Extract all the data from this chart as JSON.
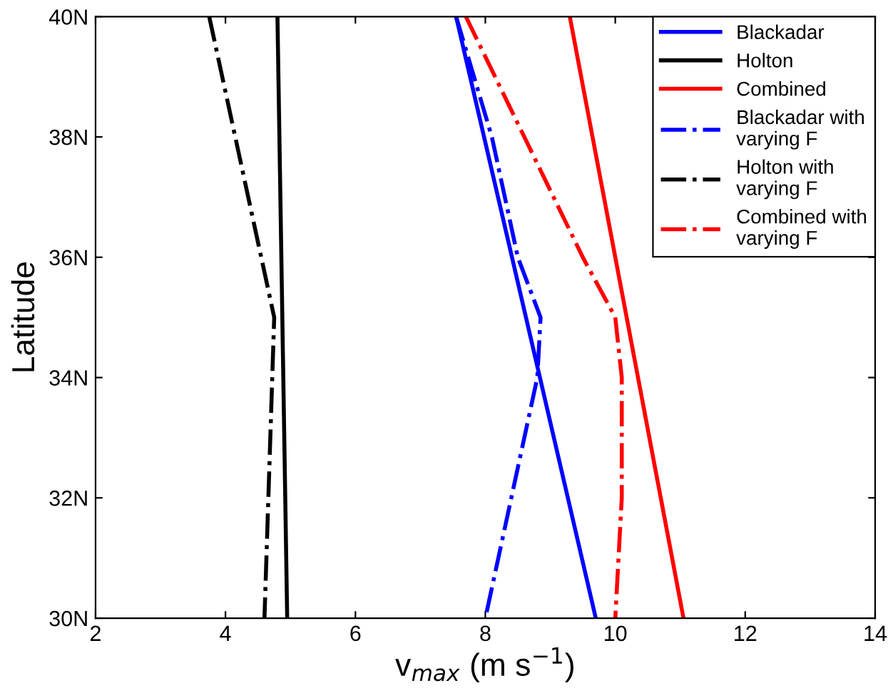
{
  "chart_data": {
    "type": "line",
    "xlabel": "v$_{max}$ (m s$^{−1}$)",
    "ylabel": "Latitude",
    "x": [
      40,
      30
    ],
    "xlim": [
      2,
      14
    ],
    "xticks": [
      2,
      4,
      6,
      8,
      10,
      12,
      14
    ],
    "ylim": [
      30,
      40
    ],
    "yticks": [
      {
        "value": 30,
        "label": "30N"
      },
      {
        "value": 32,
        "label": "32N"
      },
      {
        "value": 34,
        "label": "34N"
      },
      {
        "value": 36,
        "label": "36N"
      },
      {
        "value": 38,
        "label": "38N"
      },
      {
        "value": 40,
        "label": "40N"
      }
    ],
    "grid": false,
    "legend": "top right",
    "orientation": "horizontal",
    "series": [
      {
        "name": "Blackadar",
        "color": "#0000ff",
        "line_style": "solid",
        "values": [
          7.55,
          9.7
        ]
      },
      {
        "name": "Holton",
        "color": "#000000",
        "line_style": "solid",
        "values": [
          4.8,
          4.95
        ]
      },
      {
        "name": "Combined",
        "color": "#ff0000",
        "line_style": "solid",
        "values": [
          9.3,
          11.05
        ]
      },
      {
        "name": "Blackadar with\nvarying F",
        "color": "#0000ff",
        "line_style": "dashdot",
        "x": [
          40,
          38,
          36,
          35,
          34,
          32,
          30
        ],
        "values": [
          7.55,
          8.1,
          8.5,
          8.85,
          8.8,
          8.4,
          8.0
        ]
      },
      {
        "name": "Holton with\nvarying F",
        "color": "#000000",
        "line_style": "dashdot",
        "x": [
          40,
          35,
          30
        ],
        "values": [
          3.75,
          4.75,
          4.6
        ]
      },
      {
        "name": "Combined with\nvarying F",
        "color": "#ff0000",
        "line_style": "dashdot",
        "x": [
          40,
          38,
          36,
          35,
          34,
          32,
          30
        ],
        "values": [
          7.7,
          8.6,
          9.5,
          10.0,
          10.1,
          10.1,
          10.0
        ]
      }
    ]
  }
}
